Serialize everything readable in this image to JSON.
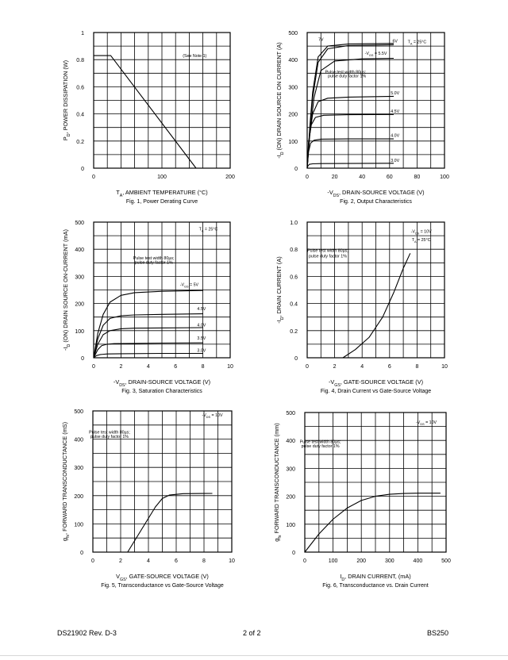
{
  "footer": {
    "doc_id": "DS21902 Rev. D-3",
    "page": "2 of 2",
    "part": "BS250"
  },
  "chart_data": [
    {
      "id": "fig1",
      "type": "line",
      "xlim": [
        0,
        200
      ],
      "ylim": [
        0,
        1
      ],
      "xticks": [
        0,
        100,
        200
      ],
      "yticks": [
        0,
        0.2,
        0.4,
        0.6,
        0.8,
        1
      ],
      "xtick_labels": [
        "0",
        "100",
        "200"
      ],
      "ytick_labels": [
        "0",
        "0.2",
        "0.4",
        "0.6",
        "0.8",
        "1"
      ],
      "xlabel_main": "T",
      "xlabel_sub": "A",
      "xlabel_rest": ", AMBIENT TEMPERATURE (°C)",
      "ylabel_main": "P",
      "ylabel_sub": "D",
      "ylabel_rest": ", POWER DISSIPATION (W)",
      "caption": "Fig. 1,  Power  Derating Curve",
      "annotations": [
        {
          "text": "(See Note 1)",
          "x": 148,
          "y": 0.82
        }
      ],
      "series": [
        {
          "x": [
            0,
            25,
            150
          ],
          "y": [
            0.83,
            0.83,
            0
          ]
        }
      ]
    },
    {
      "id": "fig2",
      "type": "line",
      "xlim": [
        0,
        100
      ],
      "ylim": [
        0,
        500
      ],
      "xticks": [
        0,
        20,
        40,
        60,
        80,
        100
      ],
      "yticks": [
        0,
        100,
        200,
        300,
        400,
        500
      ],
      "xtick_labels": [
        "0",
        "20",
        "40",
        "60",
        "80",
        "100"
      ],
      "ytick_labels": [
        "0",
        "100",
        "200",
        "300",
        "400",
        "500"
      ],
      "xlabel_main": "-V",
      "xlabel_sub": "DS",
      "xlabel_rest": ", DRAIN-SOURCE VOLTAGE (V)",
      "ylabel_main": "-I",
      "ylabel_sub": "D",
      "ylabel_rest": " (ON) DRAIN SOURCE ON CURRENT (A)",
      "caption": "Fig. 2,  Output Characteristics",
      "annotations": [
        {
          "text": "T",
          "sub": "A",
          "rest": " = 25°C",
          "x": 80,
          "y": 460
        },
        {
          "text": "7V",
          "x": 10,
          "y": 470
        },
        {
          "text": "6V",
          "x": 64,
          "y": 463
        },
        {
          "text": "-V",
          "sub": "GS",
          "rest": " = 5.5V",
          "x": 50,
          "y": 418
        },
        {
          "text": "Pulse test width 80µs;",
          "x": 28,
          "y": 350
        },
        {
          "text": "pulse duty factor 1%",
          "x": 29,
          "y": 335
        },
        {
          "text": "5.0V",
          "x": 64,
          "y": 272
        },
        {
          "text": "4.5V",
          "x": 64,
          "y": 205
        },
        {
          "text": "4.0V",
          "x": 64,
          "y": 115
        },
        {
          "text": "3.0V",
          "x": 64,
          "y": 24
        }
      ],
      "series": [
        {
          "name": "7V",
          "x": [
            0,
            2,
            4,
            8,
            15,
            30,
            63
          ],
          "y": [
            0,
            160,
            280,
            410,
            450,
            458,
            460
          ]
        },
        {
          "name": "6V",
          "x": [
            0,
            2,
            4,
            8,
            15,
            30,
            63
          ],
          "y": [
            0,
            150,
            260,
            390,
            440,
            452,
            455
          ]
        },
        {
          "name": "5.5V",
          "x": [
            0,
            2,
            5,
            10,
            20,
            40,
            63
          ],
          "y": [
            0,
            130,
            260,
            360,
            395,
            403,
            405
          ]
        },
        {
          "name": "5.0V",
          "x": [
            0,
            1.5,
            4,
            8,
            15,
            30,
            63
          ],
          "y": [
            0,
            110,
            200,
            245,
            258,
            262,
            265
          ]
        },
        {
          "name": "4.5V",
          "x": [
            0,
            1,
            3,
            6,
            12,
            30,
            63
          ],
          "y": [
            0,
            95,
            160,
            187,
            195,
            197,
            198
          ]
        },
        {
          "name": "4.0V",
          "x": [
            0,
            1,
            2.5,
            5,
            10,
            30,
            63
          ],
          "y": [
            0,
            60,
            92,
            103,
            107,
            108,
            108
          ]
        },
        {
          "name": "3.0V",
          "x": [
            0,
            0.5,
            1.5,
            4,
            10,
            63
          ],
          "y": [
            0,
            8,
            14,
            16,
            17,
            18
          ]
        }
      ]
    },
    {
      "id": "fig3",
      "type": "line",
      "xlim": [
        0,
        10
      ],
      "ylim": [
        0,
        500
      ],
      "xticks": [
        0,
        2,
        4,
        6,
        8,
        10
      ],
      "yticks": [
        0,
        100,
        200,
        300,
        400,
        500
      ],
      "xtick_labels": [
        "0",
        "2",
        "4",
        "6",
        "8",
        "10"
      ],
      "ytick_labels": [
        "0",
        "100",
        "200",
        "300",
        "400",
        "500"
      ],
      "xlabel_main": "-V",
      "xlabel_sub": "DS",
      "xlabel_rest": ", DRAIN-SOURCE VOLTAGE (V)",
      "ylabel_main": "-I",
      "ylabel_sub": "D",
      "ylabel_rest": " (ON) DRAIN SOURCE ON-CURRENT (mA)",
      "caption": "Fig. 3,  Saturation  Characteristics",
      "annotations": [
        {
          "text": "T",
          "sub": "A",
          "rest": " = 25°C",
          "x": 8.4,
          "y": 470
        },
        {
          "text": "Pulse test width 80µs;",
          "x": 4.4,
          "y": 362
        },
        {
          "text": "pulse duty factor 1%",
          "x": 4.4,
          "y": 347
        },
        {
          "text": "-V",
          "sub": "GS",
          "rest": " = 5V",
          "x": 7.0,
          "y": 265
        },
        {
          "text": "4.5V",
          "x": 7.9,
          "y": 175
        },
        {
          "text": "4.0V",
          "x": 7.9,
          "y": 115
        },
        {
          "text": "3.5V",
          "x": 7.9,
          "y": 67
        },
        {
          "text": "3.0V",
          "x": 7.9,
          "y": 22
        }
      ],
      "series": [
        {
          "name": "5V",
          "x": [
            0,
            0.3,
            0.7,
            1.2,
            2,
            3,
            5,
            8
          ],
          "y": [
            0,
            90,
            160,
            205,
            230,
            240,
            245,
            248
          ]
        },
        {
          "name": "4.5V",
          "x": [
            0,
            0.3,
            0.7,
            1.2,
            2,
            3,
            5,
            8
          ],
          "y": [
            0,
            70,
            120,
            145,
            155,
            158,
            160,
            162
          ]
        },
        {
          "name": "4.0V",
          "x": [
            0,
            0.3,
            0.7,
            1.2,
            2,
            3,
            5,
            8
          ],
          "y": [
            0,
            50,
            85,
            100,
            107,
            109,
            110,
            111
          ]
        },
        {
          "name": "3.5V",
          "x": [
            0,
            0.3,
            0.6,
            1.0,
            1.5,
            3,
            5,
            8
          ],
          "y": [
            0,
            30,
            45,
            50,
            52,
            53,
            54,
            55
          ]
        },
        {
          "name": "3.0V",
          "x": [
            0,
            0.2,
            0.5,
            1,
            2,
            5,
            8
          ],
          "y": [
            0,
            8,
            12,
            14,
            15,
            16,
            16
          ]
        }
      ]
    },
    {
      "id": "fig4",
      "type": "line",
      "xlim": [
        0,
        10
      ],
      "ylim": [
        0,
        1
      ],
      "xticks": [
        0,
        2,
        4,
        6,
        8,
        10
      ],
      "yticks": [
        0,
        0.2,
        0.4,
        0.6,
        0.8,
        1
      ],
      "xtick_labels": [
        "0",
        "2",
        "4",
        "6",
        "8",
        "10"
      ],
      "ytick_labels": [
        "0",
        "0.2",
        "0.4",
        "0.6",
        "0.8",
        "1.0"
      ],
      "xlabel_main": "-V",
      "xlabel_sub": "GS",
      "xlabel_rest": ", GATE-SOURCE VOLTAGE (V)",
      "ylabel_main": "-I",
      "ylabel_sub": "D",
      "ylabel_rest": ", DRAIN CURRENT (A)",
      "caption": "Fig. 4,  Drain Current vs Gate-Source Voltage",
      "annotations": [
        {
          "text": "-V",
          "sub": "DS",
          "rest": " = 10V",
          "x": 8.3,
          "y": 0.92
        },
        {
          "text": "T",
          "sub": "A",
          "rest": " = 25°C",
          "x": 8.3,
          "y": 0.86
        },
        {
          "text": "Pulse test width 80µs;",
          "x": 1.5,
          "y": 0.78
        },
        {
          "text": "pulse duty factor 1%",
          "x": 1.5,
          "y": 0.74
        }
      ],
      "series": [
        {
          "x": [
            2.6,
            3.5,
            4.5,
            5.5,
            6.3,
            7.0,
            7.5
          ],
          "y": [
            0,
            0.06,
            0.15,
            0.3,
            0.48,
            0.66,
            0.77
          ]
        }
      ]
    },
    {
      "id": "fig5",
      "type": "line",
      "xlim": [
        0,
        10
      ],
      "ylim": [
        0,
        500
      ],
      "xticks": [
        0,
        2,
        4,
        6,
        8,
        10
      ],
      "yticks": [
        0,
        100,
        200,
        300,
        400,
        500
      ],
      "xtick_labels": [
        "0",
        "2",
        "4",
        "6",
        "8",
        "10"
      ],
      "ytick_labels": [
        "0",
        "100",
        "200",
        "300",
        "400",
        "500"
      ],
      "xlabel_main": "V",
      "xlabel_sub": "GS",
      "xlabel_rest": ", GATE-SOURCE VOLTAGE (V)",
      "ylabel_main": "g",
      "ylabel_sub": "fs",
      "ylabel_rest": ", FORWARD TRANSCONDUCTANCE (mS)",
      "caption": "Fig. 5,  Transconductance vs Gate-Source Voltage",
      "annotations": [
        {
          "text": "-V",
          "sub": "DS",
          "rest": " = 10V",
          "x": 8.6,
          "y": 480
        },
        {
          "text": "Pulse test width 80µs;",
          "x": 1.2,
          "y": 420
        },
        {
          "text": "pulse duty factor 1%",
          "x": 1.2,
          "y": 405
        }
      ],
      "series": [
        {
          "x": [
            2.5,
            3.5,
            4.5,
            5.0,
            5.5,
            6.5,
            8.6
          ],
          "y": [
            0,
            80,
            160,
            190,
            202,
            207,
            208
          ]
        }
      ]
    },
    {
      "id": "fig6",
      "type": "line",
      "xlim": [
        0,
        500
      ],
      "ylim": [
        0,
        500
      ],
      "xticks": [
        0,
        100,
        200,
        300,
        400,
        500
      ],
      "yticks": [
        0,
        100,
        200,
        300,
        400,
        500
      ],
      "xtick_labels": [
        "0",
        "100",
        "200",
        "300",
        "400",
        "500"
      ],
      "ytick_labels": [
        "0",
        "100",
        "200",
        "300",
        "400",
        "500"
      ],
      "xlabel_main": "I",
      "xlabel_sub": "D",
      "xlabel_rest": ", DRAIN CURRENT, (mA)",
      "ylabel_main": "g",
      "ylabel_sub": "fs",
      "ylabel_rest": " FORWARD TRANSCONDUCTANCE (mm)",
      "caption": "Fig. 6,  Transconductance vs. Drain Current",
      "annotations": [
        {
          "text": "-V",
          "sub": "DS",
          "rest": " = 10V",
          "x": 430,
          "y": 460
        },
        {
          "text": "Pulse test width 80µs;",
          "x": 55,
          "y": 390
        },
        {
          "text": "pulse duty factor 1%",
          "x": 55,
          "y": 375
        }
      ],
      "series": [
        {
          "x": [
            0,
            50,
            100,
            150,
            200,
            250,
            300,
            350,
            400,
            450,
            480
          ],
          "y": [
            0,
            65,
            118,
            158,
            185,
            200,
            207,
            210,
            211,
            211,
            211
          ]
        }
      ]
    }
  ]
}
